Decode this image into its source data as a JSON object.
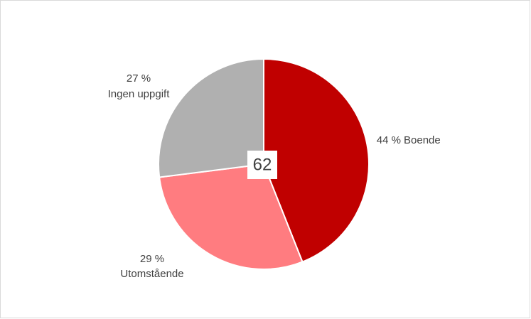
{
  "chart_data": {
    "type": "pie",
    "categories": [
      "Boende",
      "Utomstående",
      "Ingen uppgift"
    ],
    "values": [
      44,
      29,
      27
    ],
    "value_labels": [
      "44 %",
      "29 %",
      "27 %"
    ],
    "colors": [
      "#c00000",
      "#ff7c80",
      "#b0b0b0"
    ],
    "total": 62
  }
}
